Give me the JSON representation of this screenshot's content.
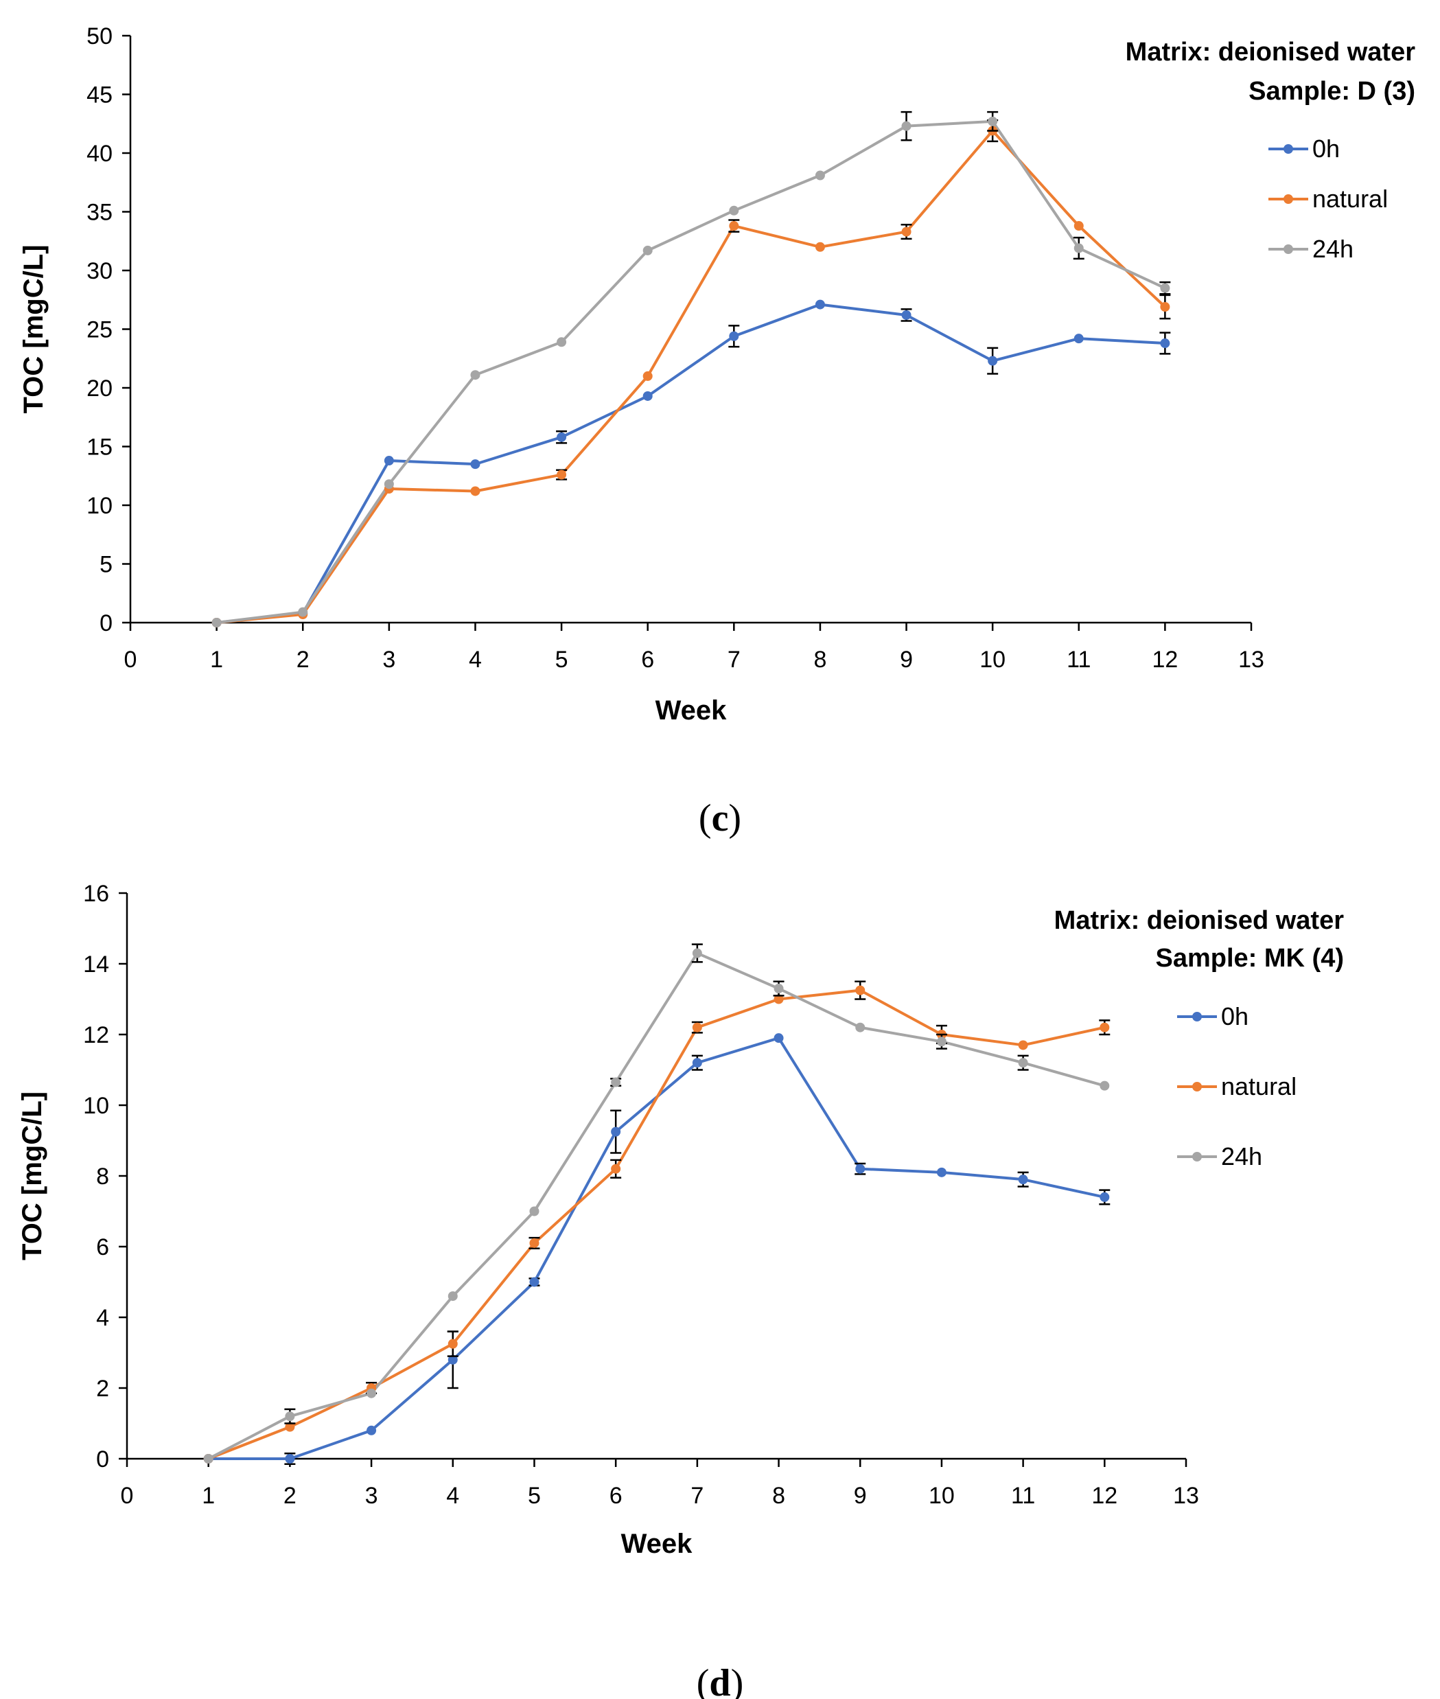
{
  "chart_data": [
    {
      "type": "line",
      "caption_letter": "c",
      "annotation": [
        "Matrix: deionised water",
        "Sample: D (3)"
      ],
      "xlabel": "Week",
      "ylabel": "TOC [mgC/L]",
      "xlim": [
        0,
        13
      ],
      "ylim": [
        0,
        50
      ],
      "xticks": [
        0,
        1,
        2,
        3,
        4,
        5,
        6,
        7,
        8,
        9,
        10,
        11,
        12,
        13
      ],
      "yticks": [
        0,
        5,
        10,
        15,
        20,
        25,
        30,
        35,
        40,
        45,
        50
      ],
      "legend_position": "top-right",
      "x": [
        1,
        2,
        3,
        4,
        5,
        6,
        7,
        8,
        9,
        10,
        11,
        12
      ],
      "series": [
        {
          "name": "0h",
          "color": "#4472C4",
          "values": [
            0,
            0.8,
            13.8,
            13.5,
            15.8,
            19.3,
            24.4,
            27.1,
            26.2,
            22.3,
            24.2,
            23.8
          ],
          "errors": [
            0,
            0,
            0,
            0,
            0.5,
            0,
            0.9,
            0,
            0.5,
            1.1,
            0,
            0.9
          ]
        },
        {
          "name": "natural",
          "color": "#ED7D31",
          "values": [
            0,
            0.7,
            11.4,
            11.2,
            12.6,
            21.0,
            33.8,
            32.0,
            33.3,
            41.9,
            33.8,
            26.9
          ],
          "errors": [
            0,
            0,
            0,
            0,
            0.4,
            0,
            0.5,
            0,
            0.6,
            0.9,
            0,
            1.0
          ]
        },
        {
          "name": "24h",
          "color": "#A5A5A5",
          "values": [
            0,
            0.9,
            11.8,
            21.1,
            23.9,
            31.7,
            35.1,
            38.1,
            42.3,
            42.7,
            31.9,
            28.5
          ],
          "errors": [
            0,
            0,
            0,
            0,
            0,
            0,
            0,
            0,
            1.2,
            0.8,
            0.9,
            0.5
          ]
        }
      ]
    },
    {
      "type": "line",
      "caption_letter": "d",
      "annotation": [
        "Matrix: deionised water",
        "Sample: MK (4)"
      ],
      "xlabel": "Week",
      "ylabel": "TOC [mgC/L]",
      "xlim": [
        0,
        13
      ],
      "ylim": [
        0,
        16
      ],
      "xticks": [
        0,
        1,
        2,
        3,
        4,
        5,
        6,
        7,
        8,
        9,
        10,
        11,
        12,
        13
      ],
      "yticks": [
        0,
        2,
        4,
        6,
        8,
        10,
        12,
        14,
        16
      ],
      "legend_position": "right",
      "x": [
        1,
        2,
        3,
        4,
        5,
        6,
        7,
        8,
        9,
        10,
        11,
        12
      ],
      "series": [
        {
          "name": "0h",
          "color": "#4472C4",
          "values": [
            0,
            0,
            0.8,
            2.8,
            5.0,
            9.25,
            11.2,
            11.9,
            8.2,
            8.1,
            7.9,
            7.4
          ],
          "errors": [
            0,
            0.15,
            0,
            0.8,
            0.1,
            0.6,
            0.2,
            0,
            0.15,
            0,
            0.2,
            0.2
          ]
        },
        {
          "name": "natural",
          "color": "#ED7D31",
          "values": [
            0,
            0.9,
            2.0,
            3.25,
            6.1,
            8.2,
            12.2,
            13.0,
            13.25,
            12.0,
            11.7,
            12.2
          ],
          "errors": [
            0,
            0,
            0.15,
            0.35,
            0.15,
            0.25,
            0.15,
            0,
            0.25,
            0.25,
            0,
            0.2
          ]
        },
        {
          "name": "24h",
          "color": "#A5A5A5",
          "values": [
            0,
            1.2,
            1.85,
            4.6,
            7.0,
            10.65,
            14.3,
            13.3,
            12.2,
            11.8,
            11.2,
            10.55
          ],
          "errors": [
            0,
            0.2,
            0,
            0,
            0,
            0.1,
            0.25,
            0.2,
            0,
            0.2,
            0.2,
            0
          ]
        }
      ]
    }
  ]
}
